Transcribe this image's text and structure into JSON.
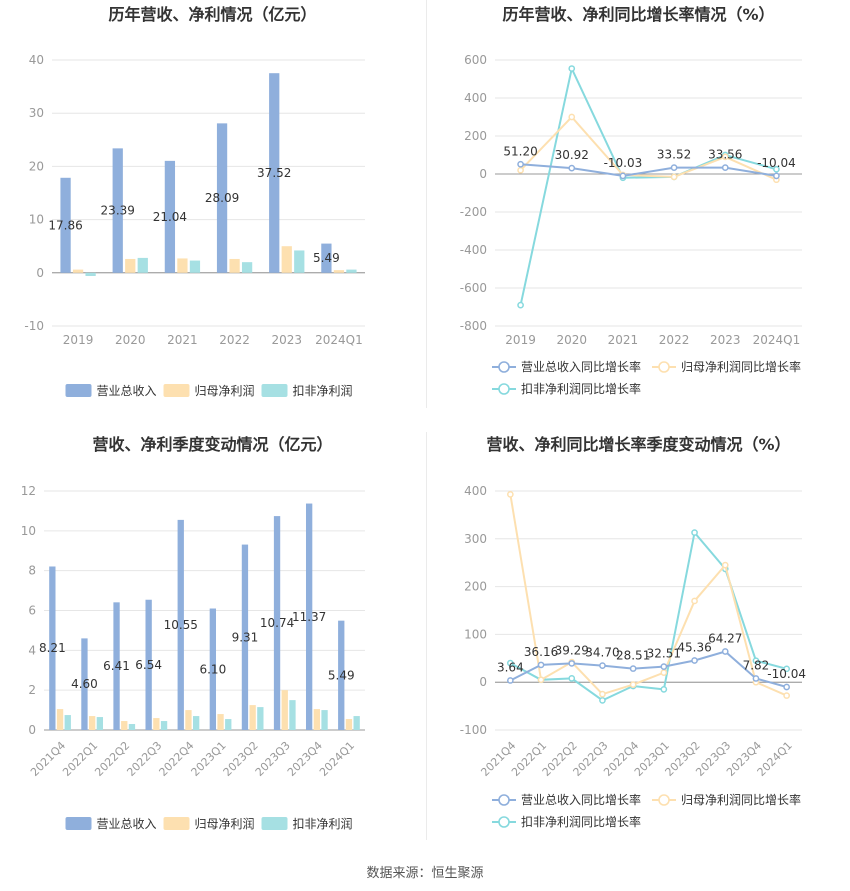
{
  "source": "数据来源：恒生聚源",
  "colors": {
    "revenue": "#8fafdc",
    "net_profit": "#fde0b0",
    "deducted_profit": "#a6e0e3",
    "grid": "#e6e6e6",
    "axis": "#999999",
    "title": "#333333",
    "label": "#333333"
  },
  "chart_data": [
    {
      "type": "bar",
      "title": "历年营收、净利情况（亿元）",
      "categories": [
        "2019",
        "2020",
        "2021",
        "2022",
        "2023",
        "2024Q1"
      ],
      "ylim": [
        -10,
        40
      ],
      "yticks": [
        -10,
        0,
        10,
        20,
        30,
        40
      ],
      "grid": true,
      "legend": "bottom",
      "series": [
        {
          "name": "营业总收入",
          "values": [
            17.86,
            23.39,
            21.04,
            28.09,
            37.52,
            5.49
          ]
        },
        {
          "name": "归母净利润",
          "values": [
            0.6,
            2.6,
            2.7,
            2.6,
            5.0,
            0.5
          ]
        },
        {
          "name": "扣非净利润",
          "values": [
            -0.6,
            2.8,
            2.3,
            2.0,
            4.2,
            0.6
          ]
        }
      ],
      "data_labels": [
        "17.86",
        "23.39",
        "21.04",
        "28.09",
        "37.52",
        "5.49"
      ]
    },
    {
      "type": "line",
      "title": "历年营收、净利同比增长率情况（%）",
      "categories": [
        "2019",
        "2020",
        "2021",
        "2022",
        "2023",
        "2024Q1"
      ],
      "ylim": [
        -800,
        600
      ],
      "yticks": [
        -800,
        -600,
        -400,
        -200,
        0,
        200,
        400,
        600
      ],
      "grid": true,
      "legend": "bottom",
      "series": [
        {
          "name": "营业总收入同比增长率",
          "values": [
            51.2,
            30.92,
            -10.03,
            33.52,
            33.56,
            -10.04
          ]
        },
        {
          "name": "归母净利润同比增长率",
          "values": [
            20,
            300,
            -5,
            -15,
            90,
            -30
          ]
        },
        {
          "name": "扣非净利润同比增长率",
          "values": [
            -690,
            555,
            -20,
            -15,
            100,
            25
          ]
        }
      ],
      "data_labels": [
        "51.20",
        "30.92",
        "-10.03",
        "33.52",
        "33.56",
        "-10.04"
      ]
    },
    {
      "type": "bar",
      "title": "营收、净利季度变动情况（亿元）",
      "categories": [
        "2021Q4",
        "2022Q1",
        "2022Q2",
        "2022Q3",
        "2022Q4",
        "2023Q1",
        "2023Q2",
        "2023Q3",
        "2023Q4",
        "2024Q1"
      ],
      "ylim": [
        0,
        12
      ],
      "yticks": [
        0,
        2,
        4,
        6,
        8,
        10,
        12
      ],
      "grid": true,
      "legend": "bottom",
      "series": [
        {
          "name": "营业总收入",
          "values": [
            8.21,
            4.6,
            6.41,
            6.54,
            10.55,
            6.1,
            9.31,
            10.74,
            11.37,
            5.49
          ]
        },
        {
          "name": "归母净利润",
          "values": [
            1.05,
            0.7,
            0.45,
            0.6,
            1.0,
            0.8,
            1.25,
            2.0,
            1.05,
            0.55
          ]
        },
        {
          "name": "扣非净利润",
          "values": [
            0.75,
            0.65,
            0.3,
            0.45,
            0.7,
            0.55,
            1.15,
            1.5,
            1.0,
            0.7
          ]
        }
      ],
      "data_labels": [
        "8.21",
        "4.60",
        "6.41",
        "6.54",
        "10.55",
        "6.10",
        "9.31",
        "10.74",
        "11.37",
        "5.49"
      ]
    },
    {
      "type": "line",
      "title": "营收、净利同比增长率季度变动情况（%）",
      "categories": [
        "2021Q4",
        "2022Q1",
        "2022Q2",
        "2022Q3",
        "2022Q4",
        "2023Q1",
        "2023Q2",
        "2023Q3",
        "2023Q4",
        "2024Q1"
      ],
      "ylim": [
        -100,
        400
      ],
      "yticks": [
        -100,
        0,
        100,
        200,
        300,
        400
      ],
      "grid": true,
      "legend": "bottom",
      "series": [
        {
          "name": "营业总收入同比增长率",
          "values": [
            3.64,
            36.16,
            39.29,
            34.7,
            28.51,
            32.51,
            45.36,
            64.27,
            7.82,
            -10.04
          ]
        },
        {
          "name": "归母净利润同比增长率",
          "values": [
            393,
            5,
            42,
            -25,
            -5,
            20,
            170,
            245,
            0,
            -28
          ]
        },
        {
          "name": "扣非净利润同比增长率",
          "values": [
            40,
            5,
            8,
            -38,
            -8,
            -15,
            313,
            237,
            45,
            28
          ]
        }
      ],
      "data_labels": [
        "3.64",
        "36.16",
        "39.29",
        "34.70",
        "28.51",
        "32.51",
        "45.36",
        "64.27",
        "7.82",
        "-10.04"
      ]
    }
  ]
}
